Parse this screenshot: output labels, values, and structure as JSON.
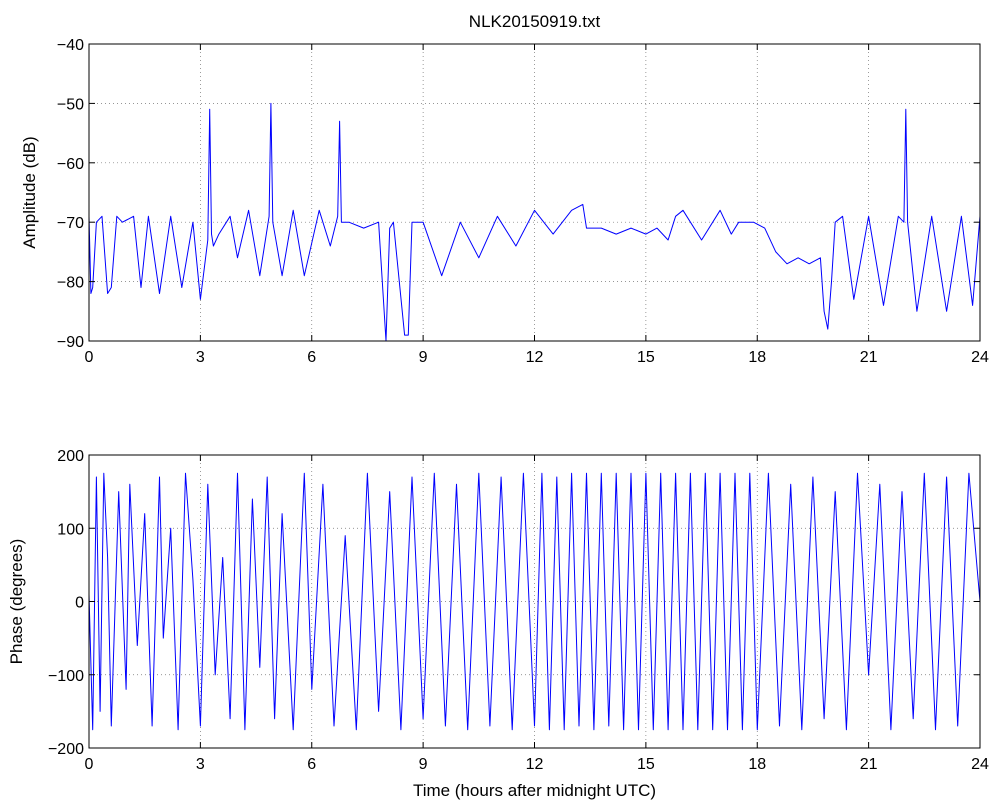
{
  "chart_data": [
    {
      "type": "line",
      "title": "NLK20150919.txt",
      "xlabel": "",
      "ylabel": "Amplitude (dB)",
      "xlim": [
        0,
        24
      ],
      "ylim": [
        -90,
        -40
      ],
      "xticks": [
        "0",
        "3",
        "6",
        "9",
        "12",
        "15",
        "18",
        "21",
        "24"
      ],
      "yticks": [
        "−40",
        "−50",
        "−60",
        "−70",
        "−80",
        "−90"
      ],
      "grid": true,
      "line_color": "#0000ff",
      "series": [
        {
          "x": [
            0,
            0.05,
            0.1,
            0.2,
            0.35,
            0.5,
            0.6,
            0.75,
            0.9,
            1.2,
            1.4,
            1.6,
            1.9,
            2.2,
            2.5,
            2.8,
            3.0,
            3.2,
            3.25,
            3.3,
            3.35,
            3.5,
            3.8,
            4.0,
            4.3,
            4.6,
            4.85,
            4.9,
            4.95,
            5.2,
            5.5,
            5.8,
            6.2,
            6.5,
            6.7,
            6.75,
            6.8,
            7.0,
            7.4,
            7.8,
            8.0,
            8.1,
            8.2,
            8.5,
            8.6,
            8.7,
            9.0,
            9.5,
            10.0,
            10.5,
            11.0,
            11.5,
            12.0,
            12.5,
            13.0,
            13.3,
            13.4,
            13.8,
            14.2,
            14.6,
            15.0,
            15.3,
            15.6,
            15.8,
            16.0,
            16.5,
            17.0,
            17.3,
            17.5,
            17.9,
            18.2,
            18.5,
            18.8,
            19.1,
            19.4,
            19.7,
            19.8,
            19.9,
            20.0,
            20.1,
            20.3,
            20.6,
            21.0,
            21.4,
            21.8,
            21.95,
            22.0,
            22.05,
            22.3,
            22.7,
            23.1,
            23.5,
            23.8,
            24.0
          ],
          "values": [
            -69,
            -82,
            -81,
            -70,
            -69,
            -82,
            -81,
            -69,
            -70,
            -69,
            -81,
            -69,
            -82,
            -69,
            -81,
            -70,
            -83,
            -73,
            -51,
            -72,
            -74,
            -72,
            -69,
            -76,
            -68,
            -79,
            -69,
            -50,
            -70,
            -79,
            -68,
            -79,
            -68,
            -74,
            -69,
            -53,
            -70,
            -70,
            -71,
            -70,
            -90,
            -71,
            -70,
            -89,
            -89,
            -70,
            -70,
            -79,
            -70,
            -76,
            -69,
            -74,
            -68,
            -72,
            -68,
            -67,
            -71,
            -71,
            -72,
            -71,
            -72,
            -71,
            -73,
            -69,
            -68,
            -73,
            -68,
            -72,
            -70,
            -70,
            -71,
            -75,
            -77,
            -76,
            -77,
            -76,
            -85,
            -88,
            -80,
            -70,
            -69,
            -83,
            -69,
            -84,
            -69,
            -70,
            -51,
            -70,
            -85,
            -69,
            -85,
            -69,
            -84,
            -69
          ]
        }
      ]
    },
    {
      "type": "line",
      "title": "",
      "xlabel": "Time (hours after midnight UTC)",
      "ylabel": "Phase (degrees)",
      "xlim": [
        0,
        24
      ],
      "ylim": [
        -200,
        200
      ],
      "xticks": [
        "0",
        "3",
        "6",
        "9",
        "12",
        "15",
        "18",
        "21",
        "24"
      ],
      "yticks": [
        "200",
        "100",
        "0",
        "−100",
        "−200"
      ],
      "grid": true,
      "line_color": "#0000ff",
      "series": [
        {
          "x": [
            0,
            0.1,
            0.2,
            0.3,
            0.4,
            0.5,
            0.6,
            0.8,
            1.0,
            1.1,
            1.3,
            1.5,
            1.7,
            1.9,
            2.0,
            2.2,
            2.4,
            2.6,
            2.8,
            3.0,
            3.2,
            3.4,
            3.6,
            3.8,
            4.0,
            4.2,
            4.4,
            4.6,
            4.8,
            5.0,
            5.2,
            5.5,
            5.8,
            6.0,
            6.3,
            6.6,
            6.9,
            7.2,
            7.5,
            7.8,
            8.1,
            8.4,
            8.7,
            9.0,
            9.3,
            9.6,
            9.9,
            10.2,
            10.5,
            10.8,
            11.1,
            11.4,
            11.7,
            12.0,
            12.2,
            12.4,
            12.6,
            12.8,
            13.0,
            13.2,
            13.4,
            13.6,
            13.8,
            14.0,
            14.2,
            14.4,
            14.6,
            14.8,
            15.0,
            15.2,
            15.4,
            15.6,
            15.8,
            16.0,
            16.2,
            16.4,
            16.6,
            16.8,
            17.0,
            17.2,
            17.4,
            17.6,
            17.8,
            18.0,
            18.3,
            18.6,
            18.9,
            19.2,
            19.5,
            19.8,
            20.1,
            20.4,
            20.7,
            21.0,
            21.3,
            21.6,
            21.9,
            22.2,
            22.5,
            22.8,
            23.1,
            23.4,
            23.7,
            24.0
          ],
          "values": [
            10,
            -175,
            170,
            -150,
            175,
            60,
            -170,
            150,
            -120,
            160,
            -60,
            120,
            -170,
            170,
            -50,
            100,
            -175,
            175,
            30,
            -170,
            160,
            -100,
            60,
            -160,
            175,
            -175,
            140,
            -90,
            170,
            -160,
            120,
            -175,
            175,
            -120,
            160,
            -170,
            90,
            -175,
            175,
            -150,
            150,
            -175,
            170,
            -160,
            175,
            -170,
            160,
            -175,
            175,
            -170,
            170,
            -175,
            175,
            -170,
            175,
            -175,
            170,
            -175,
            175,
            -170,
            175,
            -175,
            175,
            -170,
            175,
            -175,
            175,
            -175,
            175,
            -175,
            175,
            -175,
            175,
            -175,
            175,
            -175,
            175,
            -175,
            175,
            -175,
            175,
            -175,
            175,
            -175,
            175,
            -170,
            160,
            -175,
            170,
            -160,
            150,
            -175,
            175,
            -100,
            160,
            -175,
            150,
            -160,
            175,
            -175,
            170,
            -170,
            175,
            0
          ]
        }
      ]
    }
  ]
}
